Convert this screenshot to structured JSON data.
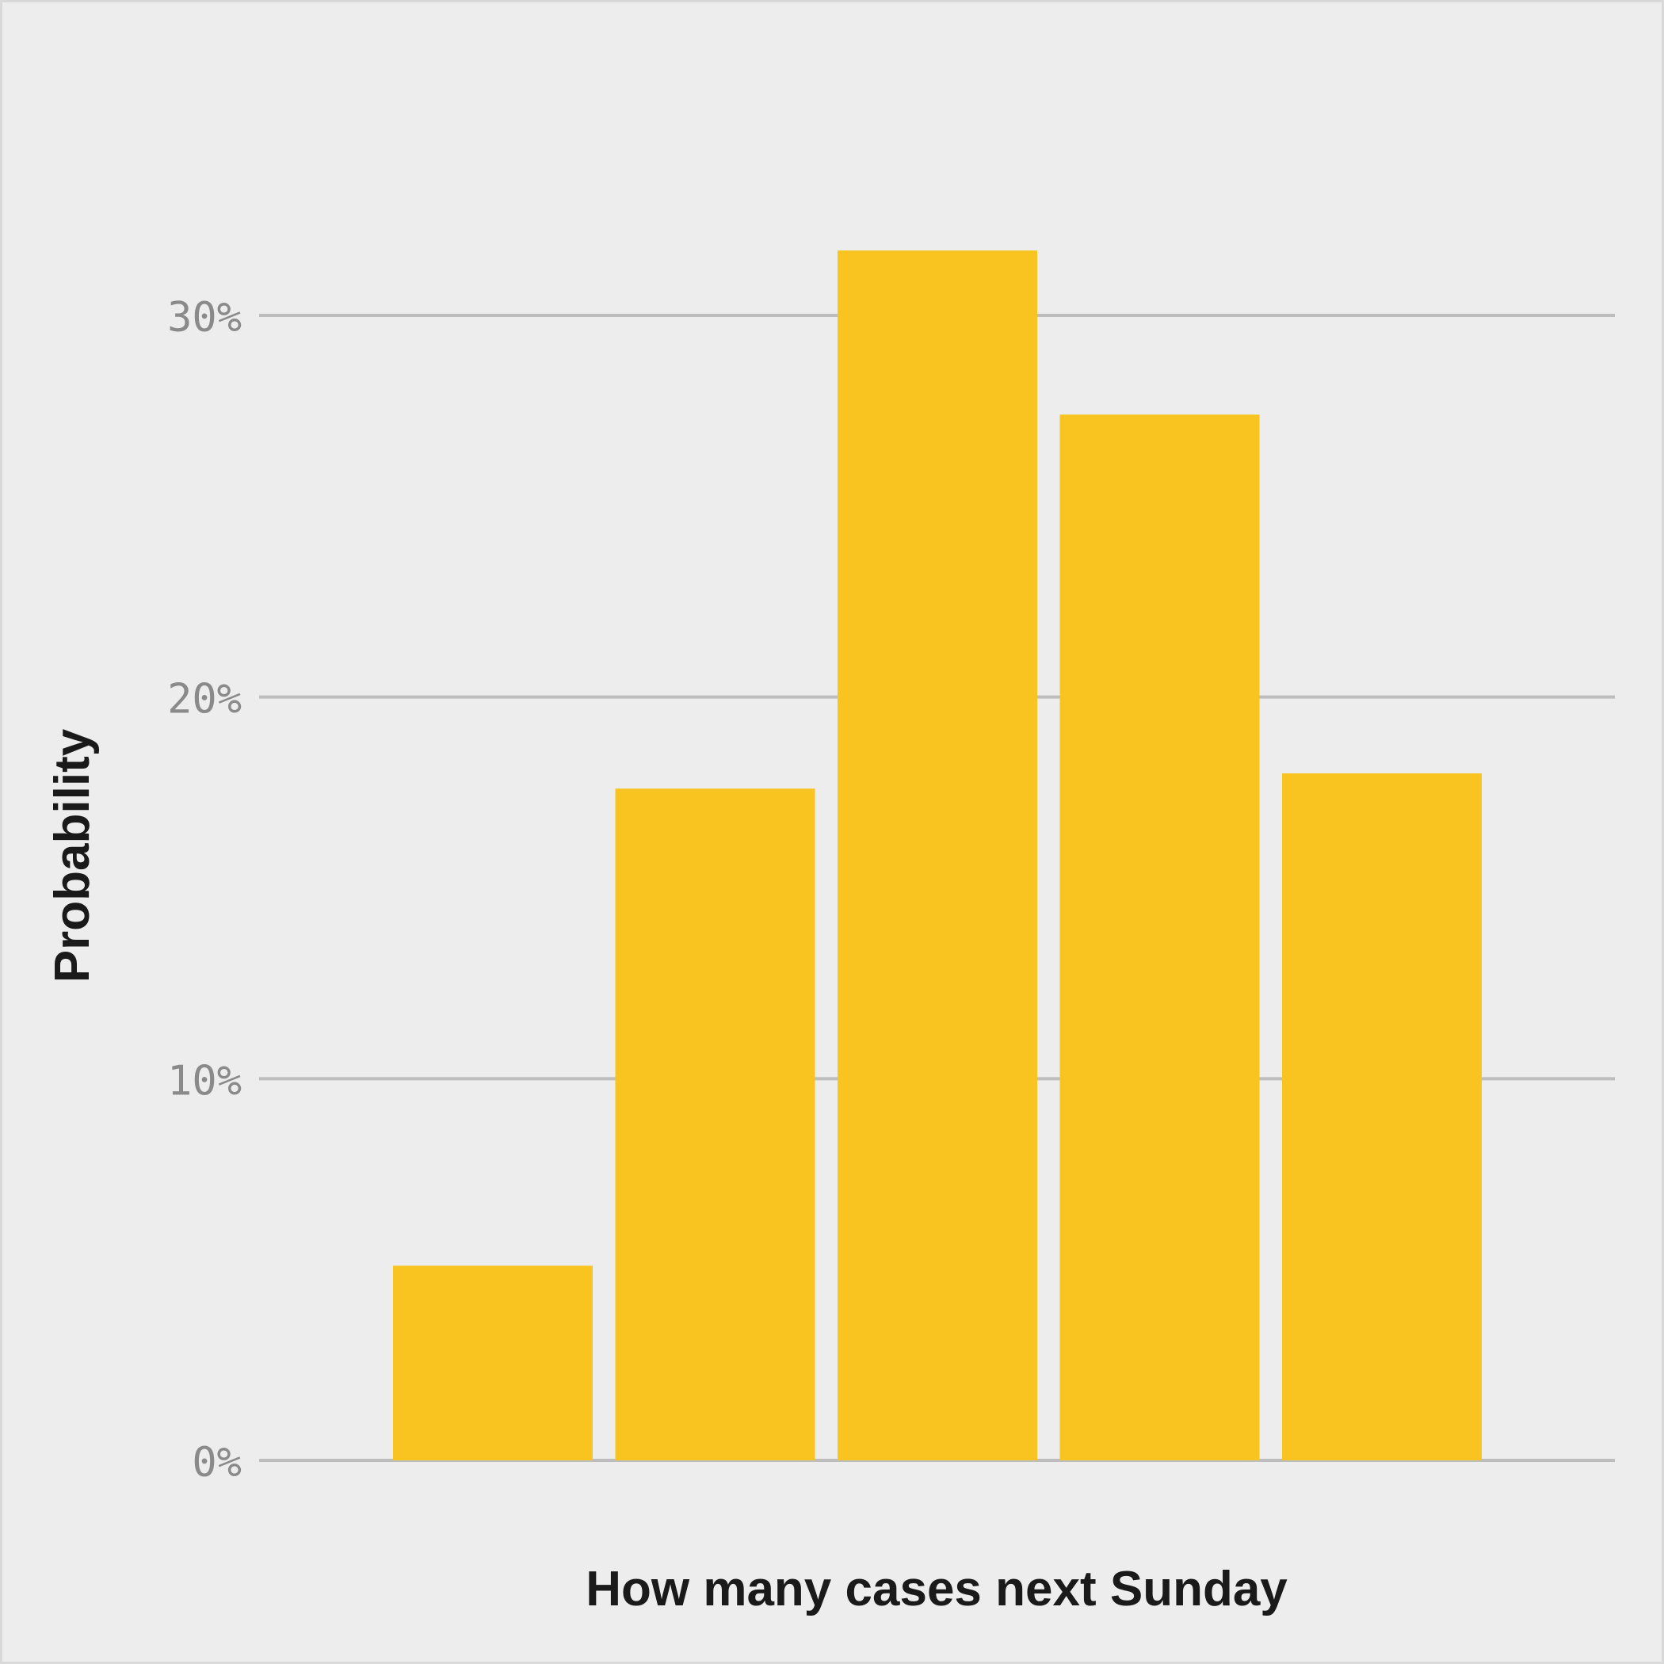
{
  "colors": {
    "background": "#ededed",
    "border": "#d9d9d9",
    "bar": "#f9c41f",
    "grid": "#bdbdbd",
    "tick_text": "#8a8a8a",
    "axis_title_text": "#1a1a1a"
  },
  "chart_data": {
    "type": "bar",
    "xlabel": "How many cases next Sunday",
    "ylabel": "Probability",
    "ylim": [
      0,
      30
    ],
    "y_ticks": [
      {
        "value": 0,
        "label": "0%"
      },
      {
        "value": 10,
        "label": "10%"
      },
      {
        "value": 20,
        "label": "20%"
      },
      {
        "value": 30,
        "label": "30%"
      }
    ],
    "grid": true,
    "values": [
      5.1,
      17.6,
      31.7,
      27.4,
      18.0
    ]
  }
}
